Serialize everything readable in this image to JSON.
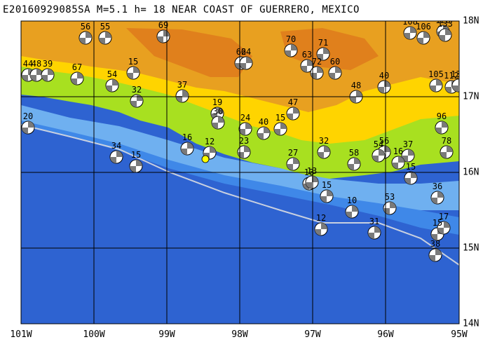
{
  "title": "E20160929085SA M=5.1 h= 18 NEAR COAST OF GUERRERO, MEXICO",
  "lon_labels": [
    "101W",
    "100W",
    "99W",
    "98W",
    "97W",
    "96W",
    "95W"
  ],
  "lat_labels": [
    "18N",
    "17N",
    "16N",
    "15N",
    "14N"
  ],
  "colors": {
    "ocean_deep": "#2e63d1",
    "ocean_mid": "#3f88e8",
    "ocean_shallow": "#6fb0f0",
    "lowland": "#a8e020",
    "hills": "#ffd400",
    "mountains": "#e8a020",
    "peaks": "#e0801c",
    "trench": "#c8d0e0",
    "grid": "#000000",
    "epicenter": "#ffff00"
  },
  "event_depths": [
    {
      "label": "56"
    },
    {
      "label": "55"
    },
    {
      "label": "69"
    },
    {
      "label": "108"
    },
    {
      "label": "128"
    },
    {
      "label": "106"
    },
    {
      "label": "133"
    },
    {
      "label": "62"
    },
    {
      "label": "64"
    },
    {
      "label": "70"
    },
    {
      "label": "71"
    },
    {
      "label": "63"
    },
    {
      "label": "72"
    },
    {
      "label": "60"
    },
    {
      "label": "44"
    },
    {
      "label": "48"
    },
    {
      "label": "39"
    },
    {
      "label": "67"
    },
    {
      "label": "15"
    },
    {
      "label": "54"
    },
    {
      "label": "105"
    },
    {
      "label": "112"
    },
    {
      "label": "135"
    },
    {
      "label": "40"
    },
    {
      "label": "48"
    },
    {
      "label": "37"
    },
    {
      "label": "19"
    },
    {
      "label": "32"
    },
    {
      "label": "47"
    },
    {
      "label": "15"
    },
    {
      "label": "24"
    },
    {
      "label": "40"
    },
    {
      "label": "96"
    },
    {
      "label": "78"
    },
    {
      "label": "20"
    },
    {
      "label": "34"
    },
    {
      "label": "15"
    },
    {
      "label": "16"
    },
    {
      "label": "27"
    },
    {
      "label": "32"
    },
    {
      "label": "56"
    },
    {
      "label": "58"
    },
    {
      "label": "54"
    },
    {
      "label": "37"
    },
    {
      "label": "16"
    },
    {
      "label": "15"
    },
    {
      "label": "13"
    },
    {
      "label": "15"
    },
    {
      "label": "10"
    },
    {
      "label": "53"
    },
    {
      "label": "36"
    },
    {
      "label": "12"
    },
    {
      "label": "31"
    },
    {
      "label": "15"
    },
    {
      "label": "17"
    },
    {
      "label": "13"
    },
    {
      "label": "38"
    },
    {
      "label": "12"
    },
    {
      "label": "23"
    },
    {
      "label": "30"
    }
  ]
}
